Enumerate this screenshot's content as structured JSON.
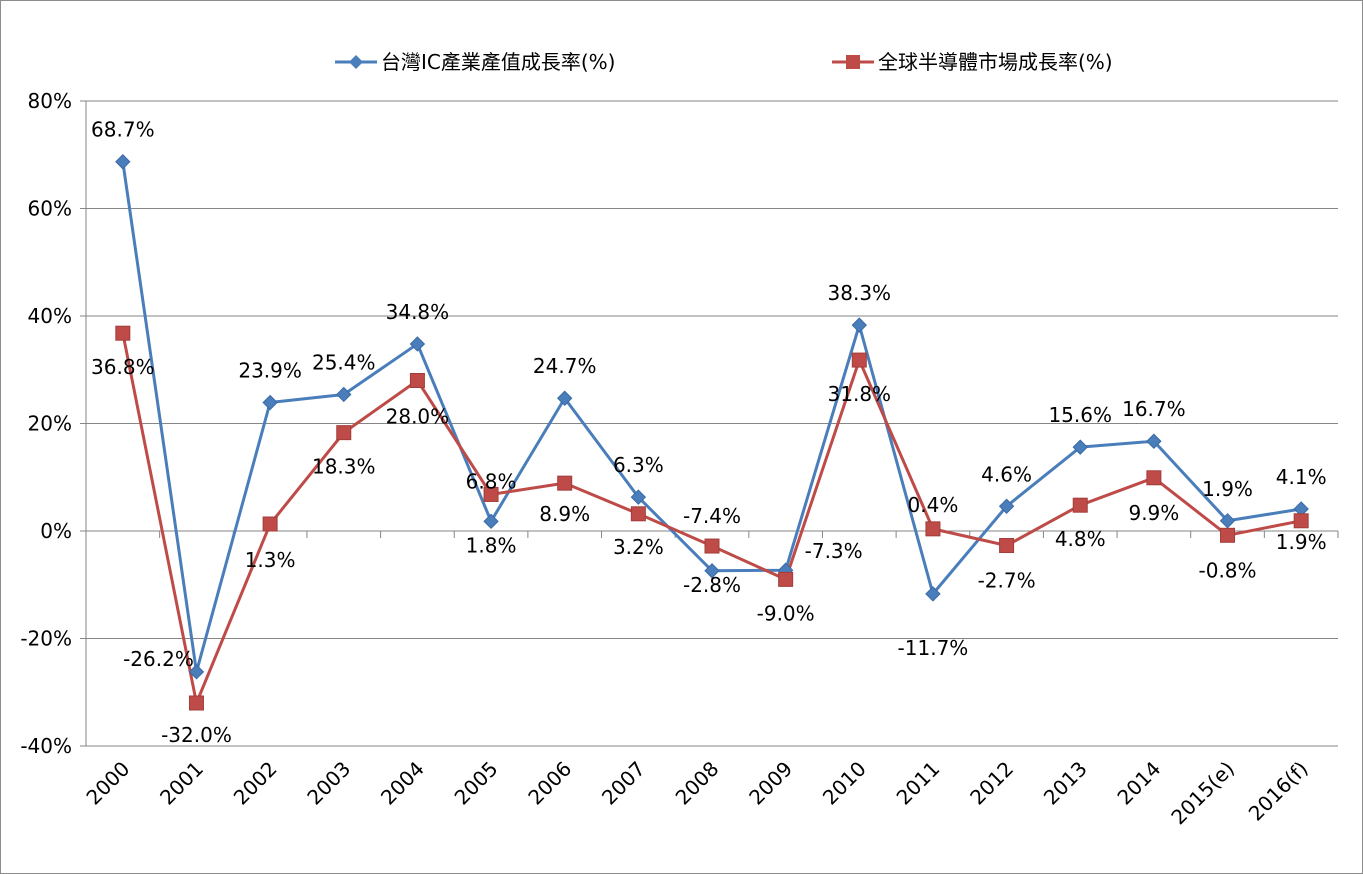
{
  "chart_data": {
    "type": "line",
    "categories": [
      "2000",
      "2001",
      "2002",
      "2003",
      "2004",
      "2005",
      "2006",
      "2007",
      "2008",
      "2009",
      "2010",
      "2011",
      "2012",
      "2013",
      "2014",
      "2015(e)",
      "2016(f)"
    ],
    "series": [
      {
        "name": "台灣IC產業產值成長率(%)",
        "color": "#4a7ebb",
        "marker": "diamond",
        "values": [
          68.7,
          -26.2,
          23.9,
          25.4,
          34.8,
          1.8,
          24.7,
          6.3,
          -7.4,
          -7.3,
          38.3,
          -11.7,
          4.6,
          15.6,
          16.7,
          1.9,
          4.1
        ],
        "labels": [
          "68.7%",
          "-26.2%",
          "23.9%",
          "25.4%",
          "34.8%",
          "1.8%",
          "24.7%",
          "6.3%",
          "-7.4%",
          "-7.3%",
          "38.3%",
          "-11.7%",
          "4.6%",
          "15.6%",
          "16.7%",
          "1.9%",
          "4.1%"
        ]
      },
      {
        "name": "全球半導體市場成長率(%)",
        "color": "#be4b48",
        "marker": "square",
        "values": [
          36.8,
          -32.0,
          1.3,
          18.3,
          28.0,
          6.8,
          8.9,
          3.2,
          -2.8,
          -9.0,
          31.8,
          0.4,
          -2.7,
          4.8,
          9.9,
          -0.8,
          1.9
        ],
        "labels": [
          "36.8%",
          "-32.0%",
          "1.3%",
          "18.3%",
          "28.0%",
          "6.8%",
          "8.9%",
          "3.2%",
          "-2.8%",
          "-9.0%",
          "31.8%",
          "0.4%",
          "-2.7%",
          "4.8%",
          "9.9%",
          "-0.8%",
          "1.9%"
        ]
      }
    ],
    "yticks": [
      "-40%",
      "-20%",
      "0%",
      "20%",
      "40%",
      "60%",
      "80%"
    ],
    "ylim": [
      -40,
      80
    ],
    "grid": true,
    "legend": "top-center"
  }
}
